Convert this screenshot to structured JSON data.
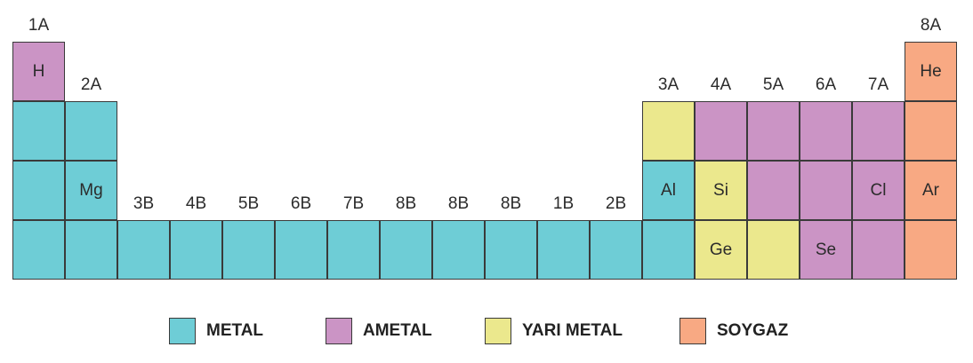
{
  "colors": {
    "metal": "#6ecdd6",
    "ametal": "#cb94c5",
    "yari_metal": "#ebe88d",
    "soygaz": "#f8a983"
  },
  "groups": [
    "1A",
    "2A",
    "3B",
    "4B",
    "5B",
    "6B",
    "7B",
    "8B",
    "8B",
    "8B",
    "1B",
    "2B",
    "3A",
    "4A",
    "5A",
    "6A",
    "7A",
    "8A"
  ],
  "rows": [
    [
      [
        "H",
        "ametal"
      ],
      null,
      null,
      null,
      null,
      null,
      null,
      null,
      null,
      null,
      null,
      null,
      null,
      null,
      null,
      null,
      null,
      [
        "He",
        "soygaz"
      ]
    ],
    [
      [
        "",
        "metal"
      ],
      [
        "",
        "metal"
      ],
      null,
      null,
      null,
      null,
      null,
      null,
      null,
      null,
      null,
      null,
      [
        "",
        "yari_metal"
      ],
      [
        "",
        "ametal"
      ],
      [
        "",
        "ametal"
      ],
      [
        "",
        "ametal"
      ],
      [
        "",
        "ametal"
      ],
      [
        "",
        "soygaz"
      ]
    ],
    [
      [
        "",
        "metal"
      ],
      [
        "Mg",
        "metal"
      ],
      null,
      null,
      null,
      null,
      null,
      null,
      null,
      null,
      null,
      null,
      [
        "Al",
        "metal"
      ],
      [
        "Si",
        "yari_metal"
      ],
      [
        "",
        "ametal"
      ],
      [
        "",
        "ametal"
      ],
      [
        "Cl",
        "ametal"
      ],
      [
        "Ar",
        "soygaz"
      ]
    ],
    [
      [
        "",
        "metal"
      ],
      [
        "",
        "metal"
      ],
      [
        "",
        "metal"
      ],
      [
        "",
        "metal"
      ],
      [
        "",
        "metal"
      ],
      [
        "",
        "metal"
      ],
      [
        "",
        "metal"
      ],
      [
        "",
        "metal"
      ],
      [
        "",
        "metal"
      ],
      [
        "",
        "metal"
      ],
      [
        "",
        "metal"
      ],
      [
        "",
        "metal"
      ],
      [
        "",
        "metal"
      ],
      [
        "Ge",
        "yari_metal"
      ],
      [
        "",
        "yari_metal"
      ],
      [
        "Se",
        "ametal"
      ],
      [
        "",
        "ametal"
      ],
      [
        "",
        "soygaz"
      ]
    ]
  ],
  "legend": [
    {
      "key": "metal",
      "label": "METAL"
    },
    {
      "key": "ametal",
      "label": "AMETAL"
    },
    {
      "key": "yari_metal",
      "label": "YARI METAL"
    },
    {
      "key": "soygaz",
      "label": "SOYGAZ"
    }
  ]
}
